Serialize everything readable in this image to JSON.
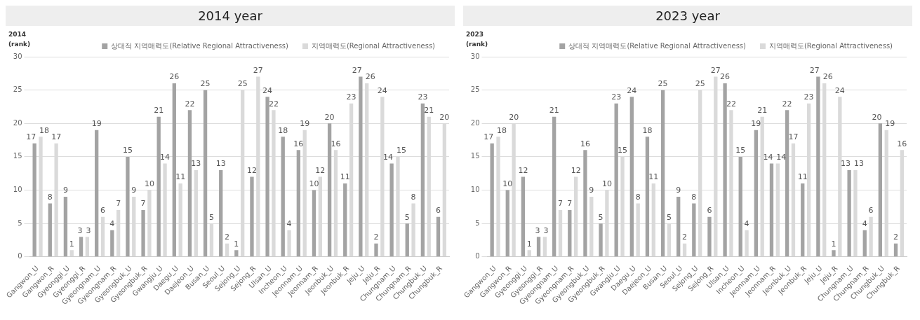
{
  "chart_data": [
    {
      "type": "bar",
      "title": "2014 year",
      "ylabel": "2014\n(rank)",
      "categories": [
        "Gangwon_U",
        "Gangwon_R",
        "Gyeonggi_U",
        "Gyeonggi_R",
        "Gyeongnam_U",
        "Gyeongnam_R",
        "Gyeongbuk_U",
        "Gyeongbuk_R",
        "Gwangju_U",
        "Daegu_U",
        "Daejeon_U",
        "Busan_U",
        "Seoul_U",
        "Sejong_U",
        "Sejong_R",
        "Ulsan_U",
        "Incheon_U",
        "Jeonnam_U",
        "Jeonnam_R",
        "Jeonbuk_U",
        "Jeonbuk_R",
        "Jeju_U",
        "Jeju_R",
        "Chungnam_U",
        "Chungnam_R",
        "Chungbuk_U",
        "Chungbuk_R"
      ],
      "series": [
        {
          "name": "상대적 지역매력도(Relative Regional Attractiveness)",
          "color": "#a3a3a3",
          "values": [
            17,
            8,
            9,
            3,
            19,
            4,
            15,
            7,
            21,
            26,
            22,
            25,
            13,
            1,
            12,
            24,
            18,
            16,
            10,
            20,
            11,
            27,
            2,
            14,
            5,
            23,
            6
          ]
        },
        {
          "name": "지역매력도(Regional Attractiveness)",
          "color": "#dadada",
          "values": [
            18,
            17,
            1,
            3,
            6,
            7,
            9,
            10,
            14,
            11,
            13,
            5,
            2,
            25,
            27,
            22,
            4,
            19,
            12,
            16,
            23,
            26,
            24,
            15,
            8,
            21,
            20
          ]
        }
      ],
      "ylim": [
        0,
        30
      ],
      "yticks": [
        0,
        5,
        10,
        15,
        20,
        25,
        30
      ],
      "grid": "y",
      "legend": "top right",
      "data_labels": true
    },
    {
      "type": "bar",
      "title": "2023 year",
      "ylabel": "2023\n(rank)",
      "categories": [
        "Gangwon_U",
        "Gangwon_R",
        "Gyeonggi_U",
        "Gyeonggi_R",
        "Gyeongnam_U",
        "Gyeongnam_R",
        "Gyeongbuk_U",
        "Gyeongbuk_R",
        "Gwangju_U",
        "Daegu_U",
        "Daejeon_U",
        "Busan_U",
        "Seoul_U",
        "Sejong_U",
        "Sejong_R",
        "Ulsan_U",
        "Incheon_U",
        "Jeonnam_U",
        "Jeonnam_R",
        "Jeonbuk_U",
        "Jeonbuk_R",
        "Jeju_U",
        "Jeju_R",
        "Chungnam_U",
        "Chungnam_R",
        "Chungbuk_U",
        "Chungbuk_R"
      ],
      "series": [
        {
          "name": "상대적 지역매력도(Relative Regional Attractiveness)",
          "color": "#a3a3a3",
          "values": [
            17,
            10,
            12,
            3,
            21,
            7,
            16,
            5,
            23,
            24,
            18,
            25,
            9,
            8,
            6,
            26,
            15,
            19,
            14,
            22,
            11,
            27,
            1,
            13,
            4,
            20,
            2
          ]
        },
        {
          "name": "지역매력도(Regional Attractiveness)",
          "color": "#dadada",
          "values": [
            18,
            20,
            1,
            3,
            7,
            12,
            9,
            10,
            15,
            8,
            11,
            5,
            2,
            25,
            27,
            22,
            4,
            21,
            14,
            17,
            23,
            26,
            24,
            13,
            6,
            19,
            16
          ]
        }
      ],
      "ylim": [
        0,
        30
      ],
      "yticks": [
        0,
        5,
        10,
        15,
        20,
        25,
        30
      ],
      "grid": "y",
      "legend": "top right",
      "data_labels": true
    }
  ]
}
